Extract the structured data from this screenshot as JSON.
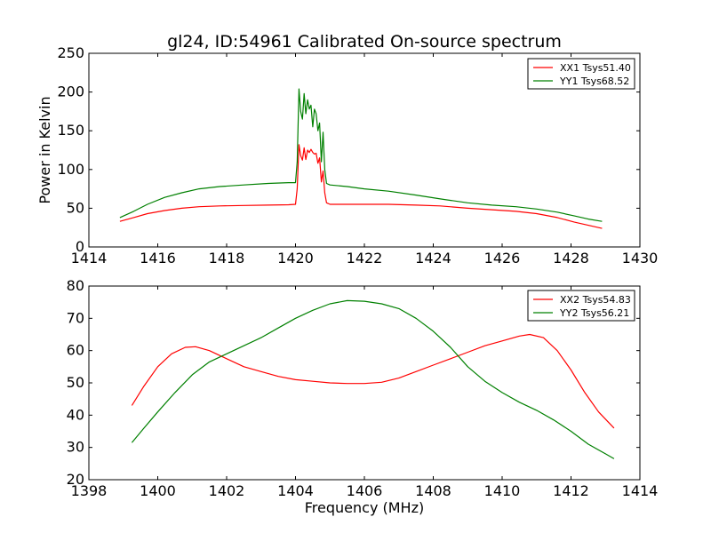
{
  "figure": {
    "title": "gl24, ID:54961 Calibrated On-source spectrum"
  },
  "chart_data": [
    {
      "type": "line",
      "title": "gl24, ID:54961 Calibrated On-source spectrum",
      "xlabel": "",
      "ylabel": "Power in Kelvin",
      "xlim": [
        1414,
        1430
      ],
      "ylim": [
        0,
        250
      ],
      "xticks": [
        "1414",
        "1416",
        "1418",
        "1420",
        "1422",
        "1424",
        "1426",
        "1428",
        "1430"
      ],
      "yticks": [
        "0",
        "50",
        "100",
        "150",
        "200",
        "250"
      ],
      "grid": false,
      "legend_position": "top-right",
      "series": [
        {
          "name": "XX1 Tsys51.40",
          "color": "#ff0000",
          "x": [
            1414.9,
            1415.3,
            1415.7,
            1416.2,
            1416.7,
            1417.2,
            1417.8,
            1418.5,
            1419.2,
            1419.8,
            1420.0,
            1420.05,
            1420.1,
            1420.15,
            1420.2,
            1420.25,
            1420.3,
            1420.35,
            1420.4,
            1420.45,
            1420.5,
            1420.55,
            1420.6,
            1420.65,
            1420.7,
            1420.75,
            1420.8,
            1420.85,
            1420.9,
            1421.0,
            1421.5,
            1422.0,
            1422.7,
            1423.5,
            1424.2,
            1425.0,
            1425.7,
            1426.4,
            1427.0,
            1427.6,
            1428.1,
            1428.5,
            1428.9
          ],
          "values": [
            33,
            38,
            43,
            47,
            50,
            52,
            53,
            53.5,
            54,
            54.5,
            55,
            75,
            132,
            118,
            112,
            128,
            113,
            125,
            122,
            126,
            122,
            120,
            121,
            108,
            115,
            84,
            98,
            70,
            57,
            55,
            55,
            55,
            55,
            54,
            53,
            50,
            48,
            46,
            43,
            38,
            32,
            28,
            24
          ]
        },
        {
          "name": "YY1 Tsys68.52",
          "color": "#008000",
          "x": [
            1414.9,
            1415.3,
            1415.7,
            1416.2,
            1416.7,
            1417.2,
            1417.8,
            1418.5,
            1419.2,
            1419.8,
            1420.0,
            1420.05,
            1420.1,
            1420.15,
            1420.2,
            1420.25,
            1420.3,
            1420.35,
            1420.4,
            1420.45,
            1420.5,
            1420.55,
            1420.6,
            1420.65,
            1420.7,
            1420.75,
            1420.8,
            1420.85,
            1420.9,
            1421.0,
            1421.5,
            1422.0,
            1422.7,
            1423.5,
            1424.2,
            1425.0,
            1425.7,
            1426.4,
            1427.0,
            1427.6,
            1428.1,
            1428.5,
            1428.9
          ],
          "values": [
            38,
            46,
            55,
            64,
            70,
            75,
            78,
            80,
            82,
            83,
            83,
            110,
            204,
            175,
            165,
            198,
            172,
            190,
            178,
            183,
            155,
            178,
            172,
            150,
            160,
            110,
            148,
            100,
            82,
            80,
            78,
            75,
            72,
            67,
            62,
            57,
            54,
            52,
            49,
            45,
            40,
            36,
            33
          ]
        }
      ]
    },
    {
      "type": "line",
      "title": "",
      "xlabel": "Frequency (MHz)",
      "ylabel": "",
      "xlim": [
        1398,
        1414
      ],
      "ylim": [
        20,
        80
      ],
      "xticks": [
        "1398",
        "1400",
        "1402",
        "1404",
        "1406",
        "1408",
        "1410",
        "1412",
        "1414"
      ],
      "yticks": [
        "20",
        "30",
        "40",
        "50",
        "60",
        "70",
        "80"
      ],
      "grid": false,
      "legend_position": "top-right",
      "series": [
        {
          "name": "XX2 Tsys54.83",
          "color": "#ff0000",
          "x": [
            1399.25,
            1399.6,
            1400.0,
            1400.4,
            1400.8,
            1401.1,
            1401.5,
            1402.0,
            1402.5,
            1403.0,
            1403.5,
            1404.0,
            1404.5,
            1405.0,
            1405.5,
            1406.0,
            1406.5,
            1407.0,
            1407.5,
            1408.0,
            1408.5,
            1409.0,
            1409.5,
            1410.0,
            1410.5,
            1410.8,
            1411.2,
            1411.6,
            1412.0,
            1412.4,
            1412.8,
            1413.25
          ],
          "values": [
            43,
            49,
            55,
            59,
            61,
            61.2,
            60,
            57.5,
            55,
            53.5,
            52,
            51,
            50.5,
            50,
            49.8,
            49.8,
            50.2,
            51.5,
            53.5,
            55.5,
            57.5,
            59.5,
            61.5,
            63,
            64.5,
            65,
            64,
            60,
            54,
            47,
            41,
            36
          ]
        },
        {
          "name": "YY2 Tsys56.21",
          "color": "#008000",
          "x": [
            1399.25,
            1399.6,
            1400.0,
            1400.5,
            1401.0,
            1401.5,
            1402.0,
            1402.5,
            1403.0,
            1403.5,
            1404.0,
            1404.5,
            1405.0,
            1405.5,
            1406.0,
            1406.5,
            1407.0,
            1407.5,
            1408.0,
            1408.5,
            1409.0,
            1409.5,
            1410.0,
            1410.5,
            1411.0,
            1411.5,
            1412.0,
            1412.5,
            1413.0,
            1413.25
          ],
          "values": [
            31.5,
            36,
            41,
            47,
            52.5,
            56.5,
            59,
            61.5,
            64,
            67,
            70,
            72.5,
            74.5,
            75.5,
            75.3,
            74.5,
            73,
            70,
            66,
            61,
            55,
            50.5,
            47,
            44,
            41.5,
            38.5,
            35,
            31,
            28,
            26.5
          ]
        }
      ]
    }
  ]
}
